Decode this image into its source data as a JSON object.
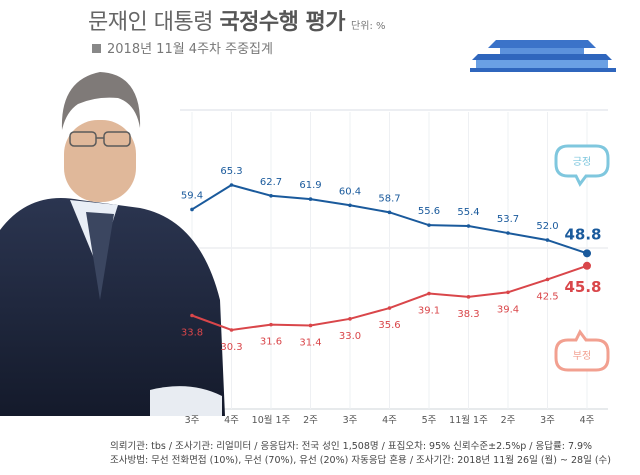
{
  "title_regular": "문재인 대통령",
  "title_bold": "국정수행 평가",
  "unit": "단위: %",
  "subtitle": "2018년 11월 4주차 주중집계",
  "chart_data": {
    "type": "line",
    "categories": [
      "3주",
      "4주",
      "10월 1주",
      "2주",
      "3주",
      "4주",
      "5주",
      "11월 1주",
      "2주",
      "3주",
      "4주"
    ],
    "ylim": [
      25,
      70
    ],
    "series": [
      {
        "name": "긍정",
        "color": "#1a5a9c",
        "values": [
          59.4,
          65.3,
          62.7,
          61.9,
          60.4,
          58.7,
          55.6,
          55.4,
          53.7,
          52.0,
          48.8
        ]
      },
      {
        "name": "부정",
        "color": "#d9464a",
        "values": [
          33.8,
          30.3,
          31.6,
          31.4,
          33.0,
          35.6,
          39.1,
          38.3,
          39.4,
          42.5,
          45.8
        ]
      }
    ]
  },
  "legend": {
    "positive": "긍정",
    "negative": "부정"
  },
  "colors": {
    "positive": "#1a5a9c",
    "negative": "#d9464a",
    "positive_bubble": "#7fc7de",
    "negative_bubble": "#f2a090"
  },
  "footer": {
    "line1": "의뢰기관: tbs / 조사기관: 리얼미터 / 응응답자: 전국 성인 1,508명 / 표집오차: 95% 신뢰수준±2.5%p / 응답률: 7.9%",
    "line2": "조사방법: 무선 전화면접 (10%), 무선 (70%), 유선 (20%) 자동응답 혼용 / 조사기간: 2018년 11월 26일 (월) ~ 28일 (수)"
  }
}
